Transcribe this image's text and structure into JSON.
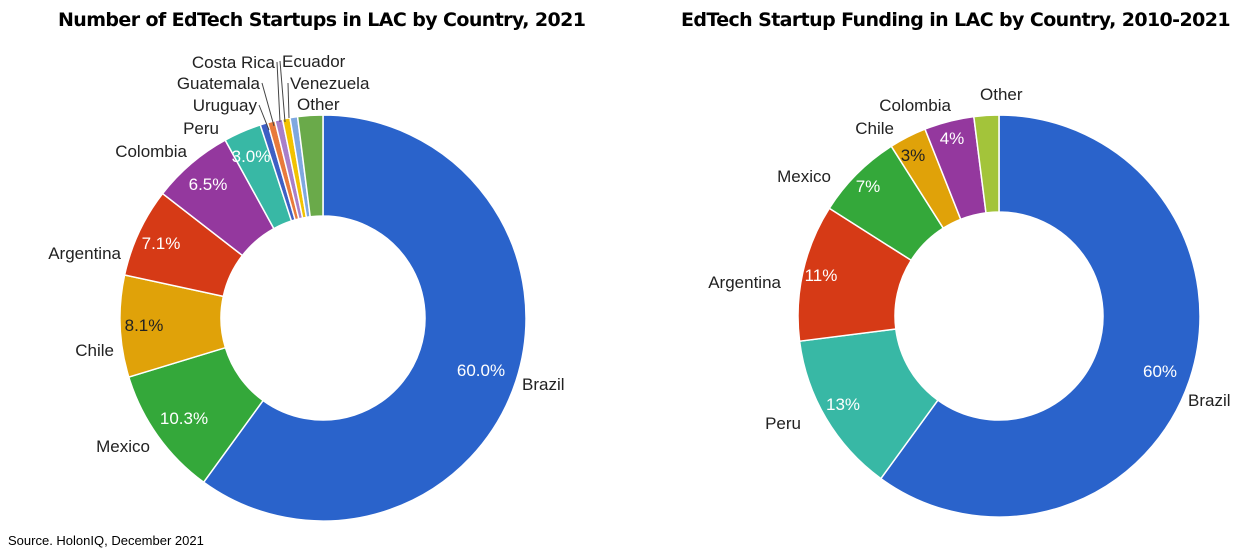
{
  "source": "Source. HolonIQ, December 2021",
  "chart_data": [
    {
      "type": "donut",
      "title": "Number of EdTech Startups in LAC by Country, 2021",
      "slices": [
        {
          "label": "Brazil",
          "value": 60.0,
          "pct_label": "60.0%",
          "color": "#2a63cb"
        },
        {
          "label": "Mexico",
          "value": 10.3,
          "pct_label": "10.3%",
          "color": "#34a83a"
        },
        {
          "label": "Chile",
          "value": 8.1,
          "pct_label": "8.1%",
          "color": "#e0a209"
        },
        {
          "label": "Argentina",
          "value": 7.1,
          "pct_label": "7.1%",
          "color": "#d63a16"
        },
        {
          "label": "Colombia",
          "value": 6.5,
          "pct_label": "6.5%",
          "color": "#94389e"
        },
        {
          "label": "Peru",
          "value": 3.0,
          "pct_label": "3.0%",
          "color": "#38b8a5"
        },
        {
          "label": "Uruguay",
          "value": 0.6,
          "pct_label": "",
          "color": "#3e5fc4"
        },
        {
          "label": "Guatemala",
          "value": 0.6,
          "pct_label": "",
          "color": "#e87a3c"
        },
        {
          "label": "Costa Rica",
          "value": 0.6,
          "pct_label": "",
          "color": "#a97fc9"
        },
        {
          "label": "Ecuador",
          "value": 0.6,
          "pct_label": "",
          "color": "#f2c200"
        },
        {
          "label": "Venezuela",
          "value": 0.6,
          "pct_label": "",
          "color": "#7fa8e0"
        },
        {
          "label": "Other",
          "value": 2.0,
          "pct_label": "",
          "color": "#6aaa4a"
        }
      ]
    },
    {
      "type": "donut",
      "title": "EdTech Startup Funding in LAC by Country, 2010-2021",
      "slices": [
        {
          "label": "Brazil",
          "value": 60,
          "pct_label": "60%",
          "color": "#2a63cb"
        },
        {
          "label": "Peru",
          "value": 13,
          "pct_label": "13%",
          "color": "#38b8a5"
        },
        {
          "label": "Argentina",
          "value": 11,
          "pct_label": "11%",
          "color": "#d63a16"
        },
        {
          "label": "Mexico",
          "value": 7,
          "pct_label": "7%",
          "color": "#34a83a"
        },
        {
          "label": "Chile",
          "value": 3,
          "pct_label": "3%",
          "color": "#e0a209"
        },
        {
          "label": "Colombia",
          "value": 4,
          "pct_label": "4%",
          "color": "#94389e"
        },
        {
          "label": "Other",
          "value": 2,
          "pct_label": "",
          "color": "#a3c43a"
        }
      ]
    }
  ]
}
